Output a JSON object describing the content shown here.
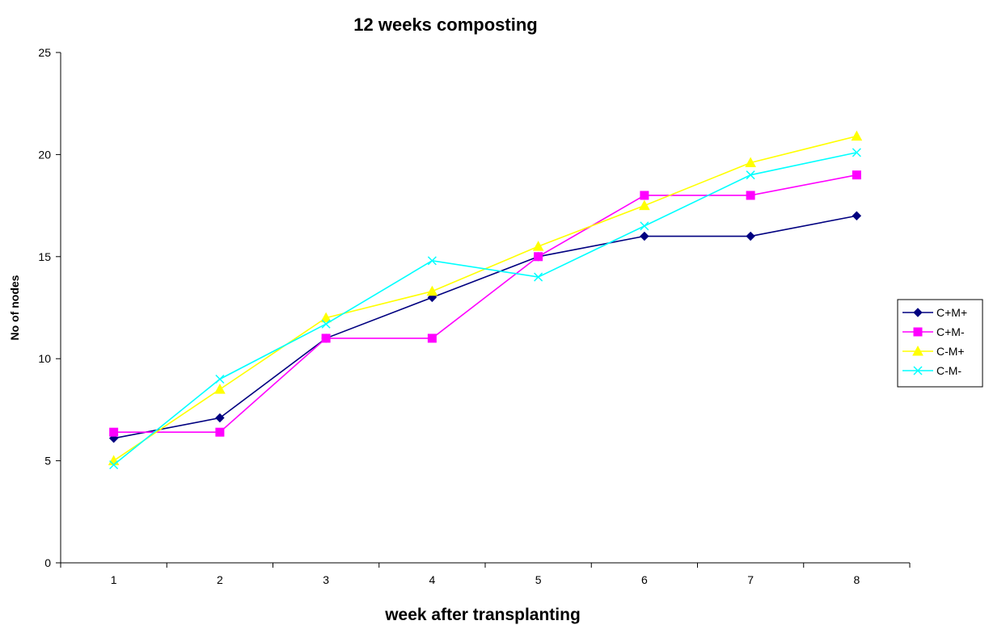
{
  "chart_data": {
    "type": "line",
    "title": "12 weeks composting",
    "xlabel": "week after transplanting",
    "ylabel": "No of nodes",
    "categories": [
      "1",
      "2",
      "3",
      "4",
      "5",
      "6",
      "7",
      "8"
    ],
    "ylim": [
      0,
      25
    ],
    "yticks": [
      "0",
      "5",
      "10",
      "15",
      "20",
      "25"
    ],
    "grid": false,
    "legend_position": "right",
    "series": [
      {
        "name": "C+M+",
        "color": "#000080",
        "marker": "diamond",
        "values": [
          6.1,
          7.1,
          11,
          13,
          15,
          16,
          16,
          17
        ]
      },
      {
        "name": "C+M-",
        "color": "#FF00FF",
        "marker": "square",
        "values": [
          6.4,
          6.4,
          11,
          11,
          15,
          18,
          18,
          19
        ]
      },
      {
        "name": "C-M+",
        "color": "#FFFF00",
        "marker": "triangle",
        "values": [
          5.0,
          8.5,
          12,
          13.3,
          15.5,
          17.5,
          19.6,
          20.9
        ]
      },
      {
        "name": "C-M-",
        "color": "#00FFFF",
        "marker": "x",
        "values": [
          4.8,
          9.0,
          11.7,
          14.8,
          14,
          16.5,
          19,
          20.1
        ]
      }
    ]
  }
}
